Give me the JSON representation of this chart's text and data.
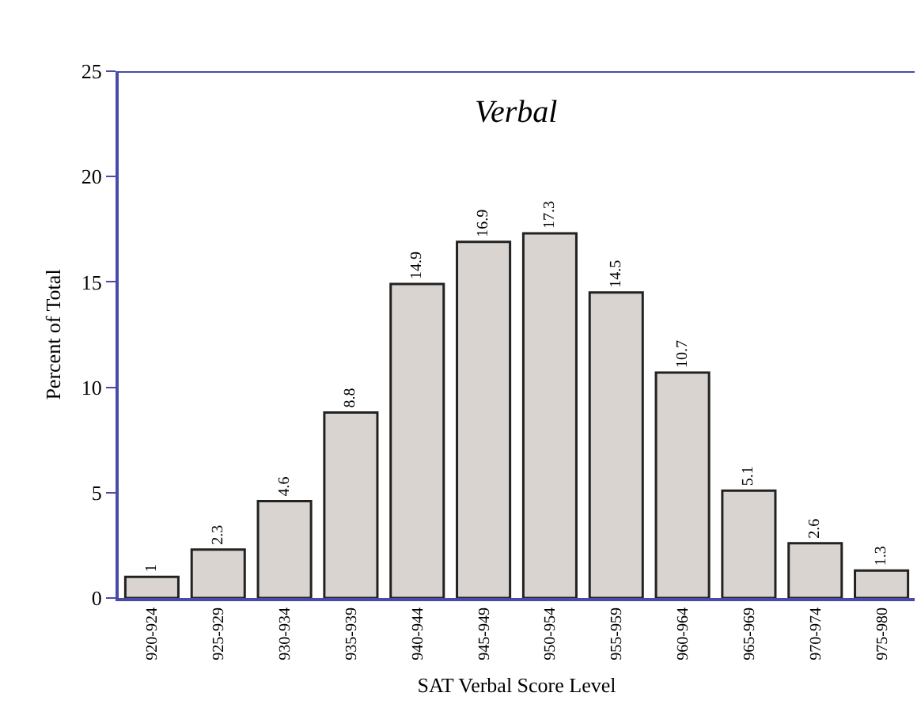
{
  "chart_data": {
    "type": "bar",
    "title": "Verbal",
    "xlabel": "SAT Verbal Score Level",
    "ylabel": "Percent of Total",
    "categories": [
      "920-924",
      "925-929",
      "930-934",
      "935-939",
      "940-944",
      "945-949",
      "950-954",
      "955-959",
      "960-964",
      "965-969",
      "970-974",
      "975-980"
    ],
    "values": [
      1,
      2.3,
      4.6,
      8.8,
      14.9,
      16.9,
      17.3,
      14.5,
      10.7,
      5.1,
      2.6,
      1.3
    ],
    "color": "#d9d4d0",
    "ylim": [
      0,
      25
    ],
    "yticks": [
      0,
      5,
      10,
      15,
      20,
      25
    ],
    "grid": false,
    "data_labels": true
  }
}
